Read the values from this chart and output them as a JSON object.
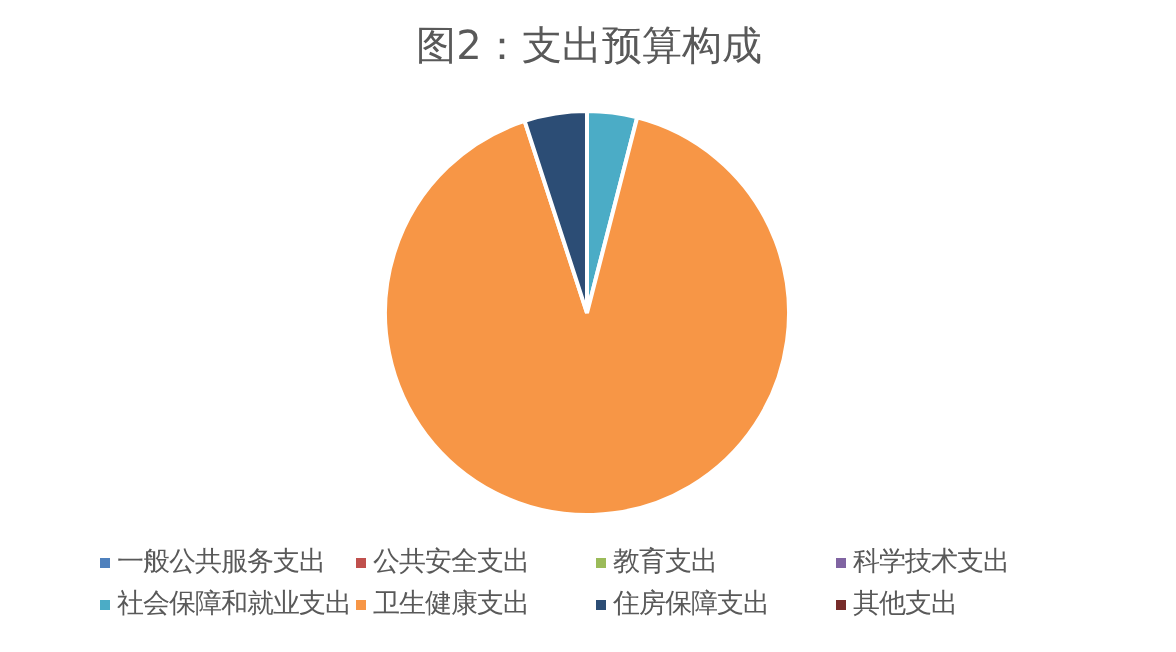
{
  "chart_data": {
    "type": "pie",
    "title": "图2：支出预算构成",
    "categories": [
      "一般公共服务支出",
      "公共安全支出",
      "教育支出",
      "科学技术支出",
      "社会保障和就业支出",
      "卫生健康支出",
      "住房保障支出",
      "其他支出"
    ],
    "values": [
      0,
      0,
      0,
      0,
      4,
      91,
      5,
      0
    ],
    "colors": [
      "#4f81bd",
      "#c0504d",
      "#9bbb59",
      "#8064a2",
      "#4bacc6",
      "#f79646",
      "#2c4d75",
      "#772c2a"
    ],
    "legend": "bottom"
  }
}
